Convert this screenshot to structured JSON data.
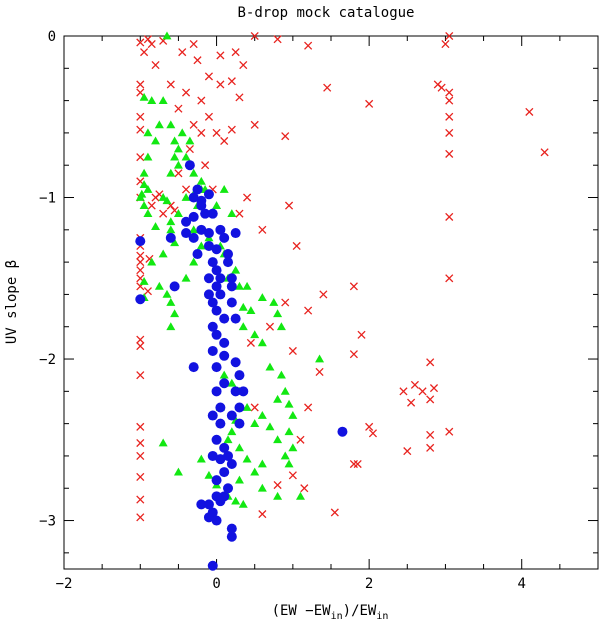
{
  "chart_data": {
    "type": "scatter",
    "title": "B-drop mock catalogue",
    "ylabel": "UV slope β",
    "xlabel": "(EW − EW_in)/EW_in",
    "xlabel_parts": {
      "main": "(EW −EW",
      "sub1": "in",
      "mid": ")/EW",
      "sub2": "in"
    },
    "xlim": [
      -2,
      5
    ],
    "ylim": [
      -3.3,
      0
    ],
    "x_ticks": [
      -2,
      0,
      2,
      4
    ],
    "y_ticks": [
      0,
      -1,
      -2,
      -3
    ],
    "x_tick_labels": [
      "−2",
      "0",
      "2",
      "4"
    ],
    "y_tick_labels": [
      "0",
      "−1",
      "−2",
      "−3"
    ],
    "grid": false,
    "legend": "none",
    "series": [
      {
        "name": "red crosses",
        "marker": "x",
        "color": "#e8231f",
        "points": [
          [
            -1.0,
            -0.04
          ],
          [
            -0.95,
            -0.1
          ],
          [
            -0.9,
            -0.02
          ],
          [
            -0.85,
            -0.05
          ],
          [
            -0.8,
            -0.18
          ],
          [
            -0.7,
            -0.03
          ],
          [
            -0.6,
            -0.3
          ],
          [
            -0.5,
            -0.45
          ],
          [
            -0.4,
            -0.35
          ],
          [
            -0.3,
            -0.05
          ],
          [
            -0.45,
            -0.1
          ],
          [
            -0.2,
            -0.4
          ],
          [
            -0.1,
            -0.25
          ],
          [
            0.05,
            -0.3
          ],
          [
            0.2,
            -0.28
          ],
          [
            0.3,
            -0.38
          ],
          [
            0.35,
            -0.18
          ],
          [
            0.5,
            0.0
          ],
          [
            0.8,
            -0.02
          ],
          [
            1.2,
            -0.06
          ],
          [
            -1.0,
            -0.3
          ],
          [
            -1.0,
            -0.35
          ],
          [
            -1.0,
            -0.5
          ],
          [
            -1.0,
            -0.58
          ],
          [
            -1.0,
            -0.75
          ],
          [
            -1.0,
            -0.9
          ],
          [
            -1.0,
            -1.0
          ],
          [
            -1.0,
            -1.25
          ],
          [
            -1.0,
            -1.4
          ],
          [
            -1.0,
            -1.5
          ],
          [
            -1.0,
            -1.55
          ],
          [
            -1.0,
            -1.88
          ],
          [
            -1.0,
            -1.92
          ],
          [
            -1.0,
            -2.1
          ],
          [
            -1.0,
            -2.42
          ],
          [
            -1.0,
            -2.52
          ],
          [
            -1.0,
            -2.6
          ],
          [
            -1.0,
            -2.73
          ],
          [
            -1.0,
            -2.87
          ],
          [
            -1.0,
            -2.98
          ],
          [
            -1.0,
            -1.3
          ],
          [
            -1.0,
            -1.36
          ],
          [
            -1.0,
            -1.45
          ],
          [
            -0.9,
            -1.58
          ],
          [
            -0.88,
            -1.38
          ],
          [
            -0.85,
            -1.05
          ],
          [
            -0.8,
            -1.0
          ],
          [
            -0.75,
            -0.98
          ],
          [
            -0.7,
            -1.1
          ],
          [
            -0.6,
            -1.05
          ],
          [
            -0.55,
            -1.08
          ],
          [
            -0.5,
            -0.85
          ],
          [
            -0.4,
            -0.95
          ],
          [
            -0.35,
            -0.7
          ],
          [
            -0.3,
            -0.55
          ],
          [
            -0.25,
            -0.15
          ],
          [
            -0.2,
            -0.6
          ],
          [
            -0.15,
            -0.8
          ],
          [
            -0.1,
            -0.5
          ],
          [
            0.0,
            -0.6
          ],
          [
            0.1,
            -0.65
          ],
          [
            0.2,
            -0.58
          ],
          [
            0.25,
            -0.1
          ],
          [
            0.05,
            -0.12
          ],
          [
            -0.05,
            -0.95
          ],
          [
            0.3,
            -1.1
          ],
          [
            0.4,
            -1.0
          ],
          [
            0.5,
            -0.55
          ],
          [
            0.6,
            -1.2
          ],
          [
            0.9,
            -0.62
          ],
          [
            0.95,
            -1.05
          ],
          [
            1.05,
            -1.3
          ],
          [
            0.9,
            -1.65
          ],
          [
            1.2,
            -1.7
          ],
          [
            1.4,
            -1.6
          ],
          [
            1.45,
            -0.32
          ],
          [
            1.8,
            -1.55
          ],
          [
            1.9,
            -1.85
          ],
          [
            1.8,
            -1.97
          ],
          [
            2.0,
            -0.42
          ],
          [
            1.35,
            -2.08
          ],
          [
            1.2,
            -2.3
          ],
          [
            1.1,
            -2.5
          ],
          [
            1.15,
            -2.8
          ],
          [
            1.55,
            -2.95
          ],
          [
            0.6,
            -2.96
          ],
          [
            0.8,
            -2.78
          ],
          [
            1.0,
            -2.72
          ],
          [
            0.5,
            -2.3
          ],
          [
            0.45,
            -1.9
          ],
          [
            0.7,
            -1.8
          ],
          [
            1.0,
            -1.95
          ],
          [
            2.0,
            -2.42
          ],
          [
            2.05,
            -2.46
          ],
          [
            2.45,
            -2.2
          ],
          [
            2.6,
            -2.16
          ],
          [
            2.7,
            -2.2
          ],
          [
            2.8,
            -2.25
          ],
          [
            2.85,
            -2.18
          ],
          [
            2.55,
            -2.27
          ],
          [
            2.8,
            -2.02
          ],
          [
            2.9,
            -0.3
          ],
          [
            2.95,
            -0.32
          ],
          [
            3.0,
            -0.05
          ],
          [
            3.05,
            0.0
          ],
          [
            3.05,
            -0.35
          ],
          [
            3.05,
            -0.4
          ],
          [
            3.05,
            -0.5
          ],
          [
            3.05,
            -0.6
          ],
          [
            3.05,
            -0.73
          ],
          [
            3.05,
            -1.12
          ],
          [
            3.05,
            -1.5
          ],
          [
            3.05,
            -2.45
          ],
          [
            2.8,
            -2.47
          ],
          [
            2.8,
            -2.55
          ],
          [
            2.5,
            -2.57
          ],
          [
            1.85,
            -2.65
          ],
          [
            1.8,
            -2.65
          ],
          [
            4.1,
            -0.47
          ],
          [
            4.3,
            -0.72
          ]
        ]
      },
      {
        "name": "green triangles",
        "marker": "triangle",
        "color": "#12e812",
        "points": [
          [
            -0.65,
            0.0
          ],
          [
            -0.95,
            -0.38
          ],
          [
            -0.85,
            -0.4
          ],
          [
            -0.7,
            -0.4
          ],
          [
            -0.75,
            -0.55
          ],
          [
            -0.9,
            -0.6
          ],
          [
            -0.8,
            -0.65
          ],
          [
            -0.9,
            -0.75
          ],
          [
            -0.6,
            -0.55
          ],
          [
            -0.55,
            -0.65
          ],
          [
            -0.5,
            -0.7
          ],
          [
            -0.55,
            -0.75
          ],
          [
            -0.5,
            -0.8
          ],
          [
            -0.6,
            -0.85
          ],
          [
            -0.95,
            -0.85
          ],
          [
            -0.95,
            -0.92
          ],
          [
            -0.9,
            -0.95
          ],
          [
            -1.0,
            -1.0
          ],
          [
            -0.95,
            -1.05
          ],
          [
            -0.9,
            -1.1
          ],
          [
            -0.98,
            -0.98
          ],
          [
            -0.7,
            -1.0
          ],
          [
            -0.65,
            -1.02
          ],
          [
            -0.6,
            -1.15
          ],
          [
            -0.8,
            -1.18
          ],
          [
            -0.6,
            -1.2
          ],
          [
            -0.5,
            -1.1
          ],
          [
            -0.4,
            -1.0
          ],
          [
            -0.3,
            -0.98
          ],
          [
            -0.2,
            -0.95
          ],
          [
            -0.25,
            -1.05
          ],
          [
            -0.55,
            -1.28
          ],
          [
            -0.7,
            -1.35
          ],
          [
            -0.85,
            -1.4
          ],
          [
            -0.95,
            -1.52
          ],
          [
            -0.75,
            -1.55
          ],
          [
            -0.65,
            -1.6
          ],
          [
            -0.6,
            -1.65
          ],
          [
            -0.55,
            -1.72
          ],
          [
            -0.95,
            -1.62
          ],
          [
            -0.6,
            -1.8
          ],
          [
            -0.4,
            -1.5
          ],
          [
            -0.3,
            -1.4
          ],
          [
            -0.2,
            -1.3
          ],
          [
            -0.1,
            -1.25
          ],
          [
            0.05,
            -1.3
          ],
          [
            0.1,
            -1.35
          ],
          [
            0.15,
            -1.5
          ],
          [
            0.25,
            -1.45
          ],
          [
            0.3,
            -1.55
          ],
          [
            0.4,
            -1.55
          ],
          [
            0.35,
            -1.68
          ],
          [
            0.45,
            -1.7
          ],
          [
            0.35,
            -1.8
          ],
          [
            0.5,
            -1.85
          ],
          [
            0.6,
            -1.62
          ],
          [
            0.75,
            -1.65
          ],
          [
            0.8,
            -1.72
          ],
          [
            0.85,
            -1.8
          ],
          [
            0.6,
            -1.9
          ],
          [
            0.7,
            -2.05
          ],
          [
            0.85,
            -2.1
          ],
          [
            0.8,
            -2.25
          ],
          [
            0.9,
            -2.2
          ],
          [
            0.95,
            -2.28
          ],
          [
            1.0,
            -2.35
          ],
          [
            0.95,
            -2.45
          ],
          [
            1.0,
            -2.55
          ],
          [
            0.9,
            -2.6
          ],
          [
            0.95,
            -2.65
          ],
          [
            1.35,
            -2.0
          ],
          [
            0.8,
            -2.5
          ],
          [
            0.7,
            -2.42
          ],
          [
            0.6,
            -2.35
          ],
          [
            0.5,
            -2.4
          ],
          [
            0.4,
            -2.3
          ],
          [
            0.3,
            -2.2
          ],
          [
            0.25,
            -2.38
          ],
          [
            0.2,
            -2.45
          ],
          [
            0.15,
            -2.5
          ],
          [
            0.3,
            -2.55
          ],
          [
            0.4,
            -2.62
          ],
          [
            0.5,
            -2.7
          ],
          [
            0.6,
            -2.65
          ],
          [
            0.3,
            -2.75
          ],
          [
            0.15,
            -2.85
          ],
          [
            0.25,
            -2.88
          ],
          [
            0.35,
            -2.9
          ],
          [
            0.6,
            -2.8
          ],
          [
            0.8,
            -2.85
          ],
          [
            1.1,
            -2.85
          ],
          [
            -0.5,
            -2.7
          ],
          [
            -0.2,
            -2.62
          ],
          [
            -0.1,
            -2.72
          ],
          [
            0.0,
            -2.78
          ],
          [
            -0.7,
            -2.52
          ],
          [
            0.05,
            -2.3
          ],
          [
            0.1,
            -2.1
          ],
          [
            0.2,
            -2.15
          ],
          [
            -0.3,
            -1.2
          ],
          [
            -0.45,
            -0.6
          ],
          [
            -0.35,
            -0.65
          ],
          [
            -0.4,
            -0.75
          ],
          [
            -0.3,
            -0.85
          ],
          [
            -0.2,
            -0.9
          ],
          [
            -0.15,
            -0.95
          ],
          [
            0.0,
            -1.05
          ],
          [
            0.1,
            -0.95
          ],
          [
            0.2,
            -1.1
          ]
        ]
      },
      {
        "name": "blue circles",
        "marker": "circle",
        "color": "#1212e0",
        "points": [
          [
            -0.35,
            -0.8
          ],
          [
            -0.25,
            -0.95
          ],
          [
            -0.1,
            -0.98
          ],
          [
            -0.3,
            -1.0
          ],
          [
            -0.2,
            -1.02
          ],
          [
            -0.15,
            -1.1
          ],
          [
            -0.05,
            -1.1
          ],
          [
            -0.2,
            -1.2
          ],
          [
            -0.1,
            -1.22
          ],
          [
            0.05,
            -1.2
          ],
          [
            -0.3,
            -1.12
          ],
          [
            -0.4,
            -1.15
          ],
          [
            -0.4,
            -1.22
          ],
          [
            -0.3,
            -1.25
          ],
          [
            -0.1,
            -1.3
          ],
          [
            0.0,
            -1.32
          ],
          [
            -0.05,
            -1.4
          ],
          [
            0.0,
            -1.45
          ],
          [
            -0.1,
            -1.5
          ],
          [
            0.05,
            -1.5
          ],
          [
            0.0,
            -1.55
          ],
          [
            0.2,
            -1.5
          ],
          [
            0.2,
            -1.55
          ],
          [
            0.25,
            -1.22
          ],
          [
            0.1,
            -1.25
          ],
          [
            0.15,
            -1.35
          ],
          [
            0.05,
            -1.6
          ],
          [
            0.0,
            -1.7
          ],
          [
            0.1,
            -1.75
          ],
          [
            0.2,
            -1.65
          ],
          [
            0.25,
            -1.75
          ],
          [
            -0.05,
            -1.8
          ],
          [
            0.0,
            -1.85
          ],
          [
            0.1,
            -1.9
          ],
          [
            -0.05,
            -1.95
          ],
          [
            0.1,
            -1.98
          ],
          [
            0.25,
            -2.02
          ],
          [
            0.3,
            -2.1
          ],
          [
            0.25,
            -2.2
          ],
          [
            0.35,
            -2.2
          ],
          [
            0.3,
            -2.3
          ],
          [
            0.2,
            -2.35
          ],
          [
            0.0,
            -2.2
          ],
          [
            0.05,
            -2.3
          ],
          [
            -0.05,
            -2.35
          ],
          [
            0.05,
            -2.4
          ],
          [
            0.0,
            -2.5
          ],
          [
            0.1,
            -2.55
          ],
          [
            0.15,
            -2.6
          ],
          [
            0.2,
            -2.65
          ],
          [
            -0.05,
            -2.6
          ],
          [
            0.05,
            -2.62
          ],
          [
            0.1,
            -2.7
          ],
          [
            0.0,
            -2.75
          ],
          [
            0.15,
            -2.8
          ],
          [
            0.1,
            -2.85
          ],
          [
            0.0,
            -2.85
          ],
          [
            -0.1,
            -2.9
          ],
          [
            -0.2,
            -2.9
          ],
          [
            -0.05,
            -2.95
          ],
          [
            -0.1,
            -2.98
          ],
          [
            0.0,
            -3.0
          ],
          [
            0.05,
            -2.88
          ],
          [
            0.2,
            -3.05
          ],
          [
            0.2,
            -3.1
          ],
          [
            -0.05,
            -3.28
          ],
          [
            -0.3,
            -2.05
          ],
          [
            1.65,
            -2.45
          ],
          [
            -1.0,
            -1.27
          ],
          [
            -1.0,
            -1.63
          ],
          [
            -0.55,
            -1.55
          ],
          [
            -0.6,
            -1.25
          ],
          [
            -0.1,
            -1.6
          ],
          [
            -0.05,
            -1.65
          ],
          [
            0.1,
            -2.15
          ],
          [
            0.0,
            -2.05
          ],
          [
            -0.2,
            -1.05
          ],
          [
            0.15,
            -1.4
          ],
          [
            0.3,
            -2.4
          ],
          [
            -0.25,
            -1.35
          ]
        ]
      }
    ]
  }
}
